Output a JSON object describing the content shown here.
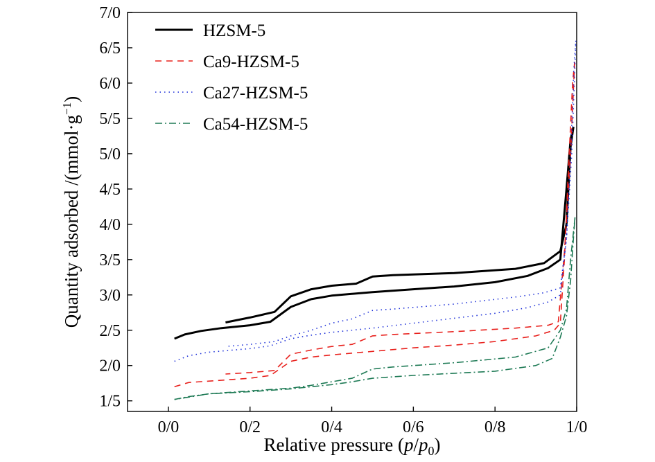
{
  "chart_data": {
    "type": "line",
    "title": "",
    "xlabel": {
      "prefix": "Relative pressure (",
      "p": "p",
      "slash": "/",
      "p0": "p",
      "sub": "0",
      "suffix": ")"
    },
    "ylabel": {
      "main": "Quantity adsorbed /(mmol·g",
      "sup": "−1",
      "end": ")"
    },
    "xlim": [
      -0.1,
      1.0
    ],
    "ylim": [
      1.35,
      7.0
    ],
    "xticks": [
      0.0,
      0.2,
      0.4,
      0.6,
      0.8,
      1.0
    ],
    "xtick_labels": [
      "0/0",
      "0/2",
      "0/4",
      "0/6",
      "0/8",
      "1/0"
    ],
    "yticks": [
      1.5,
      2.0,
      2.5,
      3.0,
      3.5,
      4.0,
      4.5,
      5.0,
      5.5,
      6.0,
      6.5,
      7.0
    ],
    "ytick_labels": [
      "1/5",
      "2/0",
      "2/5",
      "3/0",
      "3/5",
      "4/0",
      "4/5",
      "5/0",
      "5/5",
      "6/0",
      "6/5",
      "7/0"
    ],
    "grid": false,
    "legend_position": "top-left",
    "series": [
      {
        "name": "HZSM-5",
        "color": "#000000",
        "style": "solid",
        "adsorption": [
          [
            0.015,
            2.38
          ],
          [
            0.04,
            2.44
          ],
          [
            0.08,
            2.49
          ],
          [
            0.13,
            2.53
          ],
          [
            0.2,
            2.57
          ],
          [
            0.25,
            2.62
          ],
          [
            0.3,
            2.83
          ],
          [
            0.35,
            2.94
          ],
          [
            0.4,
            2.99
          ],
          [
            0.5,
            3.04
          ],
          [
            0.6,
            3.08
          ],
          [
            0.7,
            3.12
          ],
          [
            0.8,
            3.18
          ],
          [
            0.88,
            3.27
          ],
          [
            0.93,
            3.38
          ],
          [
            0.96,
            3.5
          ],
          [
            0.975,
            4.5
          ],
          [
            0.985,
            5.2
          ],
          [
            0.992,
            5.38
          ]
        ],
        "desorption": [
          [
            0.992,
            5.38
          ],
          [
            0.985,
            5.1
          ],
          [
            0.975,
            4.0
          ],
          [
            0.96,
            3.62
          ],
          [
            0.92,
            3.45
          ],
          [
            0.85,
            3.37
          ],
          [
            0.7,
            3.31
          ],
          [
            0.55,
            3.28
          ],
          [
            0.5,
            3.26
          ],
          [
            0.46,
            3.16
          ],
          [
            0.4,
            3.13
          ],
          [
            0.35,
            3.08
          ],
          [
            0.3,
            2.98
          ],
          [
            0.26,
            2.76
          ],
          [
            0.2,
            2.68
          ],
          [
            0.14,
            2.61
          ]
        ]
      },
      {
        "name": "Ca9-HZSM-5",
        "color": "#e8201c",
        "style": "dashed",
        "adsorption": [
          [
            0.015,
            1.7
          ],
          [
            0.05,
            1.76
          ],
          [
            0.1,
            1.78
          ],
          [
            0.2,
            1.82
          ],
          [
            0.25,
            1.86
          ],
          [
            0.3,
            2.06
          ],
          [
            0.35,
            2.12
          ],
          [
            0.4,
            2.15
          ],
          [
            0.5,
            2.2
          ],
          [
            0.6,
            2.25
          ],
          [
            0.7,
            2.29
          ],
          [
            0.8,
            2.34
          ],
          [
            0.9,
            2.42
          ],
          [
            0.945,
            2.5
          ],
          [
            0.96,
            2.6
          ],
          [
            0.97,
            3.5
          ],
          [
            0.98,
            4.8
          ],
          [
            0.99,
            6.0
          ],
          [
            0.995,
            6.3
          ]
        ],
        "desorption": [
          [
            0.995,
            6.3
          ],
          [
            0.985,
            5.0
          ],
          [
            0.97,
            3.6
          ],
          [
            0.955,
            2.62
          ],
          [
            0.93,
            2.57
          ],
          [
            0.85,
            2.53
          ],
          [
            0.7,
            2.48
          ],
          [
            0.55,
            2.44
          ],
          [
            0.5,
            2.42
          ],
          [
            0.45,
            2.3
          ],
          [
            0.4,
            2.27
          ],
          [
            0.35,
            2.22
          ],
          [
            0.3,
            2.16
          ],
          [
            0.26,
            1.93
          ],
          [
            0.2,
            1.9
          ],
          [
            0.14,
            1.88
          ]
        ]
      },
      {
        "name": "Ca27-HZSM-5",
        "color": "#1c2fd8",
        "style": "dotted",
        "adsorption": [
          [
            0.015,
            2.06
          ],
          [
            0.05,
            2.14
          ],
          [
            0.1,
            2.19
          ],
          [
            0.2,
            2.24
          ],
          [
            0.25,
            2.28
          ],
          [
            0.3,
            2.38
          ],
          [
            0.35,
            2.43
          ],
          [
            0.4,
            2.47
          ],
          [
            0.5,
            2.53
          ],
          [
            0.6,
            2.6
          ],
          [
            0.7,
            2.67
          ],
          [
            0.8,
            2.74
          ],
          [
            0.88,
            2.82
          ],
          [
            0.93,
            2.9
          ],
          [
            0.96,
            3.0
          ],
          [
            0.975,
            3.8
          ],
          [
            0.985,
            5.0
          ],
          [
            0.993,
            6.2
          ],
          [
            0.998,
            6.6
          ]
        ],
        "desorption": [
          [
            0.998,
            6.6
          ],
          [
            0.988,
            5.0
          ],
          [
            0.975,
            3.8
          ],
          [
            0.96,
            3.1
          ],
          [
            0.92,
            3.03
          ],
          [
            0.85,
            2.97
          ],
          [
            0.7,
            2.87
          ],
          [
            0.55,
            2.8
          ],
          [
            0.5,
            2.78
          ],
          [
            0.45,
            2.66
          ],
          [
            0.4,
            2.6
          ],
          [
            0.35,
            2.5
          ],
          [
            0.3,
            2.42
          ],
          [
            0.26,
            2.34
          ],
          [
            0.2,
            2.3
          ],
          [
            0.14,
            2.27
          ]
        ]
      },
      {
        "name": "Ca54-HZSM-5",
        "color": "#1e7a55",
        "style": "dash-dot",
        "adsorption": [
          [
            0.015,
            1.52
          ],
          [
            0.05,
            1.56
          ],
          [
            0.1,
            1.6
          ],
          [
            0.2,
            1.63
          ],
          [
            0.3,
            1.67
          ],
          [
            0.4,
            1.73
          ],
          [
            0.45,
            1.77
          ],
          [
            0.5,
            1.82
          ],
          [
            0.6,
            1.86
          ],
          [
            0.7,
            1.89
          ],
          [
            0.8,
            1.92
          ],
          [
            0.9,
            2.0
          ],
          [
            0.94,
            2.1
          ],
          [
            0.96,
            2.4
          ],
          [
            0.975,
            2.7
          ],
          [
            0.985,
            3.2
          ],
          [
            0.992,
            3.8
          ],
          [
            0.996,
            4.1
          ]
        ],
        "desorption": [
          [
            0.996,
            4.1
          ],
          [
            0.985,
            3.5
          ],
          [
            0.975,
            2.8
          ],
          [
            0.96,
            2.5
          ],
          [
            0.93,
            2.25
          ],
          [
            0.85,
            2.12
          ],
          [
            0.7,
            2.04
          ],
          [
            0.55,
            1.98
          ],
          [
            0.5,
            1.95
          ],
          [
            0.45,
            1.82
          ],
          [
            0.4,
            1.77
          ],
          [
            0.35,
            1.72
          ],
          [
            0.3,
            1.68
          ],
          [
            0.2,
            1.64
          ],
          [
            0.1,
            1.6
          ],
          [
            0.015,
            1.52
          ]
        ]
      }
    ]
  }
}
